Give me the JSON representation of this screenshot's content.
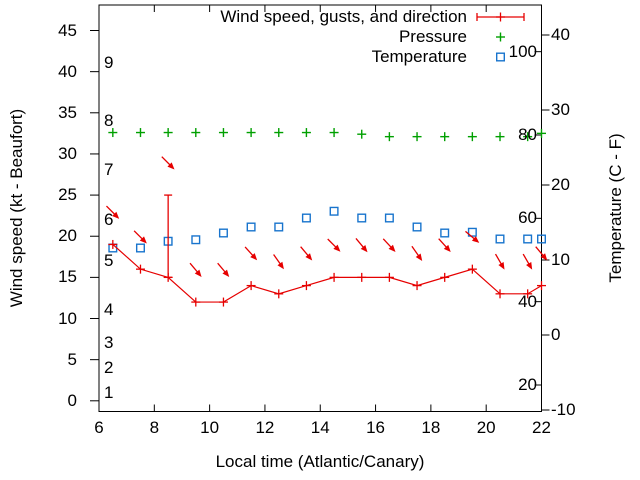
{
  "figure": {
    "background": "#ffffff",
    "legend": [
      {
        "label": "Wind speed, gusts, and direction",
        "color": "#e60000",
        "marker": "errorbar-line-plus"
      },
      {
        "label": "Pressure",
        "color": "#00a000",
        "marker": "plus"
      },
      {
        "label": "Temperature",
        "color": "#1874cd",
        "marker": "open-square"
      }
    ]
  },
  "chart_data": {
    "type": "line",
    "title": "",
    "grid": false,
    "legend_position": "top-inside",
    "x_hours": [
      6.5,
      7.5,
      8.5,
      9.5,
      10.5,
      11.5,
      12.5,
      13.5,
      14.5,
      15.5,
      16.5,
      17.5,
      18.5,
      19.5,
      20.5,
      21.5,
      22
    ],
    "series": [
      {
        "name": "Wind speed, gusts, and direction",
        "axis": "left",
        "color": "#e60000",
        "marker": "plus",
        "line": true,
        "values": [
          19,
          16,
          15,
          12,
          12,
          14,
          13,
          14,
          15,
          15,
          15,
          14,
          15,
          16,
          13,
          13,
          14
        ],
        "gusts_kt": [
          null,
          null,
          25,
          null,
          null,
          null,
          null,
          null,
          null,
          null,
          null,
          null,
          null,
          null,
          null,
          null,
          null
        ],
        "direction_arrow_angle_deg": [
          45,
          45,
          45,
          50,
          50,
          48,
          55,
          50,
          45,
          50,
          47,
          55,
          48,
          40,
          60,
          60,
          50
        ]
      },
      {
        "name": "Pressure",
        "axis": "none-visible-scale (values given in left-axis pixel-equivalent units)",
        "color": "#00a000",
        "marker": "plus",
        "line": false,
        "values": [
          32.6,
          32.6,
          32.6,
          32.6,
          32.6,
          32.6,
          32.6,
          32.6,
          32.6,
          32.4,
          32.1,
          32.1,
          32.1,
          32.1,
          32.1,
          32.1,
          32.5
        ]
      },
      {
        "name": "Temperature",
        "axis": "right",
        "color": "#1874cd",
        "marker": "open-square",
        "line": false,
        "values": [
          11.6,
          11.6,
          12.5,
          12.7,
          13.6,
          14.4,
          14.4,
          15.6,
          16.5,
          15.6,
          15.6,
          14.4,
          13.6,
          13.7,
          12.8,
          12.8,
          12.8
        ]
      }
    ],
    "x_axis": {
      "label": "Local time (Atlantic/Canary)",
      "ticks": [
        6,
        8,
        10,
        12,
        14,
        16,
        18,
        20,
        22
      ],
      "range": [
        6,
        22
      ]
    },
    "y_axis_left": {
      "label": "Wind speed (kt - Beaufort)",
      "ticks": [
        0,
        5,
        10,
        15,
        20,
        25,
        30,
        35,
        40,
        45
      ],
      "range": [
        -1.3,
        48.1
      ],
      "beaufort_labels": [
        {
          "beaufort": "1",
          "at_kt": 1
        },
        {
          "beaufort": "2",
          "at_kt": 4
        },
        {
          "beaufort": "3",
          "at_kt": 7
        },
        {
          "beaufort": "4",
          "at_kt": 11
        },
        {
          "beaufort": "5",
          "at_kt": 17
        },
        {
          "beaufort": "6",
          "at_kt": 22
        },
        {
          "beaufort": "7",
          "at_kt": 28
        },
        {
          "beaufort": "8",
          "at_kt": 34
        },
        {
          "beaufort": "9",
          "at_kt": 41
        }
      ]
    },
    "y_axis_right": {
      "label": "Temperature (C - F)",
      "ticks_c": [
        -10,
        0,
        10,
        20,
        30,
        40
      ],
      "range_c": [
        -10.2,
        44.0
      ],
      "ticks_f": [
        20,
        40,
        60,
        80,
        100
      ]
    }
  }
}
